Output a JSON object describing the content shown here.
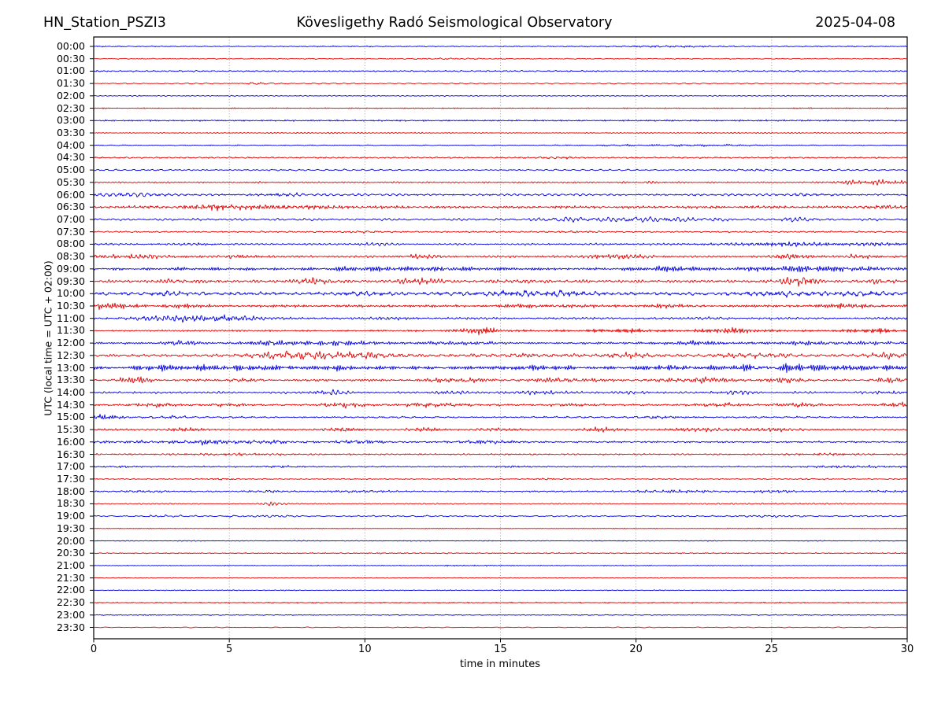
{
  "titles": {
    "station": "HN_Station_PSZI3",
    "observatory": "Kövesligethy Radó Seismological Observatory",
    "date": "2025-04-08"
  },
  "colors": {
    "blue": "#0000e0",
    "red": "#e00000",
    "grid": "#8a8a8a",
    "frame": "#000000",
    "tick": "#000000",
    "text": "#000000",
    "background": "#ffffff"
  },
  "chart_data": {
    "type": "line",
    "variant": "helicorder-dayplot",
    "station_title": "HN_Station_PSZI3",
    "main_title": "Kövesligethy Radó Seismological Observatory",
    "date_title": "2025-04-08",
    "xlabel": "time in minutes",
    "ylabel": "UTC (local time = UTC + 02:00)",
    "x_range": [
      0,
      30
    ],
    "x_ticks": [
      0,
      5,
      10,
      15,
      20,
      25,
      30
    ],
    "grid_minutes": [
      5,
      10,
      15,
      20,
      25
    ],
    "minutes_per_row": 30,
    "trace_color_rule": "blue on the hour, red on the half hour",
    "rows": [
      {
        "t": "00:00",
        "c": "blue",
        "a": 0.5,
        "b": [
          [
            21.5,
            1.5,
            0.5
          ]
        ]
      },
      {
        "t": "00:30",
        "c": "red",
        "a": 0.45,
        "b": [
          [
            13,
            1,
            0.3
          ]
        ]
      },
      {
        "t": "01:00",
        "c": "blue",
        "a": 0.7,
        "b": []
      },
      {
        "t": "01:30",
        "c": "red",
        "a": 0.55,
        "b": [
          [
            6,
            0.4,
            0.8
          ]
        ]
      },
      {
        "t": "02:00",
        "c": "blue",
        "a": 0.45,
        "b": []
      },
      {
        "t": "02:30",
        "c": "red",
        "a": 0.5,
        "b": []
      },
      {
        "t": "03:00",
        "c": "blue",
        "a": 0.7,
        "b": []
      },
      {
        "t": "03:30",
        "c": "red",
        "a": 0.5,
        "b": []
      },
      {
        "t": "04:00",
        "c": "blue",
        "a": 0.45,
        "b": [
          [
            20.5,
            2,
            0.4
          ],
          [
            23,
            1,
            0.4
          ]
        ]
      },
      {
        "t": "04:30",
        "c": "red",
        "a": 0.7,
        "b": [
          [
            17,
            0.5,
            0.6
          ]
        ]
      },
      {
        "t": "05:00",
        "c": "blue",
        "a": 0.7,
        "b": [
          [
            24,
            1,
            0.5
          ]
        ]
      },
      {
        "t": "05:30",
        "c": "red",
        "a": 0.7,
        "b": [
          [
            28.3,
            0.8,
            1.6
          ],
          [
            29.5,
            0.5,
            1.2
          ],
          [
            20.5,
            0.5,
            0.6
          ]
        ]
      },
      {
        "t": "06:00",
        "c": "blue",
        "a": 1.0,
        "b": [
          [
            1.3,
            0.8,
            1.2
          ],
          [
            7,
            0.7,
            1.0
          ],
          [
            26.3,
            0.5,
            0.8
          ]
        ]
      },
      {
        "t": "06:30",
        "c": "red",
        "a": 1.2,
        "b": [
          [
            4.6,
            0.5,
            1.8
          ],
          [
            6.5,
            2.5,
            1.0
          ],
          [
            29,
            0.7,
            0.8
          ]
        ]
      },
      {
        "t": "07:00",
        "c": "blue",
        "a": 1.0,
        "b": [
          [
            17.3,
            0.5,
            1.2
          ],
          [
            19.8,
            1.5,
            1.4
          ],
          [
            21.8,
            0.8,
            1.0
          ],
          [
            26,
            0.6,
            1.0
          ]
        ]
      },
      {
        "t": "07:30",
        "c": "red",
        "a": 0.7,
        "b": [
          [
            10,
            0.5,
            0.5
          ],
          [
            18,
            0.5,
            0.4
          ]
        ]
      },
      {
        "t": "08:00",
        "c": "blue",
        "a": 0.9,
        "b": [
          [
            4,
            0.5,
            0.8
          ],
          [
            10.2,
            0.6,
            1.2
          ],
          [
            25.5,
            1.5,
            1.2
          ],
          [
            29,
            0.5,
            0.8
          ]
        ]
      },
      {
        "t": "08:30",
        "c": "red",
        "a": 1.0,
        "b": [
          [
            1.5,
            1,
            1.5
          ],
          [
            5.5,
            0.5,
            1.0
          ],
          [
            12,
            0.5,
            1.2
          ],
          [
            19.3,
            0.8,
            2.0
          ],
          [
            25.8,
            0.5,
            2.2
          ],
          [
            28.2,
            0.5,
            1.0
          ]
        ]
      },
      {
        "t": "09:00",
        "c": "blue",
        "a": 1.3,
        "b": [
          [
            10.5,
            1.5,
            1.0
          ],
          [
            13,
            0.8,
            1.0
          ],
          [
            21.3,
            0.8,
            1.4
          ],
          [
            24.3,
            0.8,
            1.2
          ],
          [
            26,
            0.5,
            1.0
          ],
          [
            28,
            1.5,
            1.5
          ]
        ]
      },
      {
        "t": "09:30",
        "c": "red",
        "a": 1.3,
        "b": [
          [
            3,
            0.8,
            1.0
          ],
          [
            8.1,
            0.4,
            2.8
          ],
          [
            12,
            0.5,
            2.6
          ],
          [
            15.5,
            0.5,
            1.0
          ],
          [
            25.8,
            0.4,
            3.4
          ],
          [
            26.3,
            0.3,
            2.0
          ],
          [
            29,
            0.5,
            1.2
          ]
        ]
      },
      {
        "t": "10:00",
        "c": "blue",
        "a": 1.5,
        "b": [
          [
            3,
            0.6,
            1.0
          ],
          [
            10,
            0.7,
            1.0
          ],
          [
            15.3,
            1.5,
            1.2
          ],
          [
            17,
            0.8,
            1.0
          ],
          [
            25.5,
            1.2,
            1.4
          ],
          [
            28.5,
            0.8,
            1.0
          ]
        ]
      },
      {
        "t": "10:30",
        "c": "red",
        "a": 1.2,
        "b": [
          [
            0.5,
            0.8,
            1.6
          ],
          [
            3,
            0.5,
            1.4
          ],
          [
            16.5,
            1,
            0.8
          ],
          [
            21,
            0.5,
            0.8
          ],
          [
            27.8,
            0.6,
            1.6
          ]
        ]
      },
      {
        "t": "11:00",
        "c": "blue",
        "a": 1.0,
        "b": [
          [
            3.5,
            1.3,
            2.2
          ],
          [
            5,
            0.8,
            1.5
          ],
          [
            11,
            0.5,
            0.6
          ],
          [
            23,
            0.5,
            0.6
          ]
        ]
      },
      {
        "t": "11:30",
        "c": "red",
        "a": 0.9,
        "b": [
          [
            14.2,
            0.5,
            2.6
          ],
          [
            19.5,
            0.8,
            1.4
          ],
          [
            23.5,
            0.7,
            1.8
          ],
          [
            28.7,
            0.6,
            2.0
          ]
        ]
      },
      {
        "t": "12:00",
        "c": "blue",
        "a": 1.0,
        "b": [
          [
            3.2,
            0.4,
            2.4
          ],
          [
            6.3,
            0.6,
            1.4
          ],
          [
            8.8,
            1.2,
            1.4
          ],
          [
            13.5,
            1,
            1.0
          ],
          [
            22.3,
            0.6,
            1.2
          ],
          [
            26.3,
            0.7,
            1.4
          ],
          [
            28.5,
            0.8,
            1.0
          ]
        ]
      },
      {
        "t": "12:30",
        "c": "red",
        "a": 1.2,
        "b": [
          [
            7,
            0.5,
            1.8
          ],
          [
            8,
            1.5,
            2.2
          ],
          [
            10,
            1,
            1.4
          ],
          [
            16,
            1.2,
            1.0
          ],
          [
            19.8,
            0.6,
            1.8
          ],
          [
            24.3,
            1,
            1.6
          ],
          [
            29.3,
            0.6,
            1.8
          ]
        ]
      },
      {
        "t": "13:00",
        "c": "blue",
        "a": 1.6,
        "b": [
          [
            2.8,
            0.8,
            1.8
          ],
          [
            4.3,
            0.5,
            1.4
          ],
          [
            6.3,
            0.6,
            2.2
          ],
          [
            9.3,
            0.5,
            1.8
          ],
          [
            16,
            0.6,
            1.8
          ],
          [
            21.2,
            0.6,
            1.4
          ],
          [
            24.8,
            1.2,
            2.0
          ],
          [
            27.5,
            1.2,
            1.6
          ]
        ]
      },
      {
        "t": "13:30",
        "c": "red",
        "a": 1.0,
        "b": [
          [
            1.5,
            0.4,
            2.2
          ],
          [
            5.5,
            0.5,
            1.0
          ],
          [
            13.5,
            0.8,
            1.8
          ],
          [
            17.5,
            0.8,
            1.2
          ],
          [
            22,
            1,
            2.0
          ],
          [
            25.5,
            0.6,
            1.4
          ],
          [
            29.4,
            0.5,
            1.8
          ]
        ]
      },
      {
        "t": "14:00",
        "c": "blue",
        "a": 0.9,
        "b": [
          [
            8.6,
            0.5,
            1.6
          ],
          [
            13,
            0.5,
            1.0
          ],
          [
            16.5,
            1,
            1.0
          ],
          [
            20,
            0.5,
            0.7
          ],
          [
            23.6,
            0.6,
            1.1
          ],
          [
            29.4,
            0.5,
            1.2
          ]
        ]
      },
      {
        "t": "14:30",
        "c": "red",
        "a": 0.9,
        "b": [
          [
            2.3,
            0.5,
            1.6
          ],
          [
            5,
            0.5,
            1.0
          ],
          [
            9.2,
            0.5,
            2.0
          ],
          [
            12.5,
            0.8,
            1.4
          ],
          [
            17.6,
            0.5,
            1.0
          ],
          [
            23,
            0.6,
            1.4
          ],
          [
            26,
            0.6,
            1.4
          ],
          [
            29.7,
            0.4,
            1.8
          ]
        ]
      },
      {
        "t": "15:00",
        "c": "blue",
        "a": 0.8,
        "b": [
          [
            0.3,
            0.5,
            2.4
          ],
          [
            2.8,
            0.5,
            0.8
          ],
          [
            20.8,
            0.5,
            0.8
          ]
        ]
      },
      {
        "t": "15:30",
        "c": "red",
        "a": 0.8,
        "b": [
          [
            3.2,
            0.5,
            1.2
          ],
          [
            9,
            0.5,
            1.2
          ],
          [
            12,
            0.5,
            1.2
          ],
          [
            14.6,
            0.5,
            1.2
          ],
          [
            18.8,
            0.6,
            1.2
          ],
          [
            23,
            1,
            1.4
          ],
          [
            25.6,
            0.5,
            1.2
          ]
        ]
      },
      {
        "t": "16:00",
        "c": "blue",
        "a": 0.8,
        "b": [
          [
            0.5,
            3,
            0.6
          ],
          [
            4.2,
            0.8,
            1.6
          ],
          [
            6.5,
            0.6,
            1.2
          ],
          [
            9.7,
            0.7,
            1.2
          ],
          [
            14.5,
            0.8,
            1.2
          ]
        ]
      },
      {
        "t": "16:30",
        "c": "red",
        "a": 0.7,
        "b": [
          [
            5,
            1.5,
            0.6
          ],
          [
            27,
            0.7,
            0.6
          ]
        ]
      },
      {
        "t": "17:00",
        "c": "blue",
        "a": 0.6,
        "b": [
          [
            1,
            0.4,
            0.5
          ],
          [
            6.8,
            0.4,
            0.6
          ],
          [
            15.5,
            0.5,
            0.5
          ],
          [
            28,
            1.2,
            0.8
          ]
        ]
      },
      {
        "t": "17:30",
        "c": "red",
        "a": 0.5,
        "b": [
          [
            4.8,
            0.3,
            0.6
          ],
          [
            16.8,
            0.4,
            0.5
          ],
          [
            26.5,
            0.5,
            0.4
          ]
        ]
      },
      {
        "t": "18:00",
        "c": "blue",
        "a": 0.7,
        "b": [
          [
            2,
            0.5,
            0.6
          ],
          [
            6.5,
            0.5,
            0.6
          ],
          [
            9.8,
            0.6,
            0.7
          ],
          [
            21.5,
            1,
            0.9
          ],
          [
            25,
            0.6,
            0.9
          ],
          [
            29,
            0.5,
            0.6
          ]
        ]
      },
      {
        "t": "18:30",
        "c": "red",
        "a": 0.5,
        "b": [
          [
            6.6,
            0.25,
            1.8
          ],
          [
            25.5,
            1,
            0.5
          ]
        ]
      },
      {
        "t": "19:00",
        "c": "blue",
        "a": 0.6,
        "b": [
          [
            2.5,
            0.5,
            0.5
          ],
          [
            5,
            0.4,
            0.5
          ],
          [
            6.8,
            0.6,
            0.6
          ],
          [
            12,
            0.4,
            0.4
          ],
          [
            24.5,
            1,
            0.5
          ]
        ]
      },
      {
        "t": "19:30",
        "c": "red",
        "a": 0.35,
        "b": []
      },
      {
        "t": "20:00",
        "c": "blue",
        "a": 0.4,
        "b": []
      },
      {
        "t": "20:30",
        "c": "red",
        "a": 0.5,
        "b": []
      },
      {
        "t": "21:00",
        "c": "blue",
        "a": 0.4,
        "b": [
          [
            14,
            1,
            0.2
          ]
        ]
      },
      {
        "t": "21:30",
        "c": "red",
        "a": 0.35,
        "b": []
      },
      {
        "t": "22:00",
        "c": "blue",
        "a": 0.4,
        "b": []
      },
      {
        "t": "22:30",
        "c": "red",
        "a": 0.5,
        "b": []
      },
      {
        "t": "23:00",
        "c": "blue",
        "a": 0.4,
        "b": [
          [
            2,
            0.4,
            0.3
          ]
        ]
      },
      {
        "t": "23:30",
        "c": "red",
        "a": 0.35,
        "b": []
      }
    ]
  }
}
